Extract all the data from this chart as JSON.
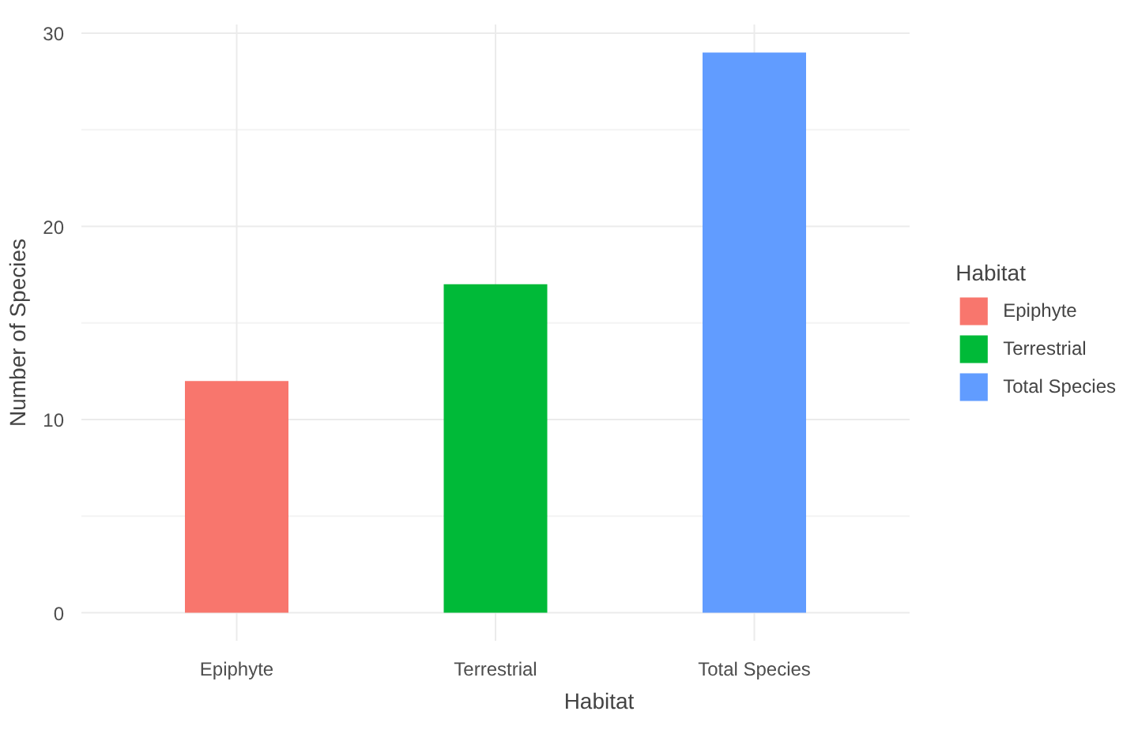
{
  "chart_data": {
    "type": "bar",
    "xlabel": "Habitat",
    "ylabel": "Number of Species",
    "legend_title": "Habitat",
    "categories": [
      "Epiphyte",
      "Terrestrial",
      "Total Species"
    ],
    "series": [
      {
        "name": "Epiphyte",
        "color": "#f8766d",
        "values": [
          12,
          null,
          null
        ]
      },
      {
        "name": "Terrestrial",
        "color": "#00ba38",
        "values": [
          null,
          17,
          null
        ]
      },
      {
        "name": "Total Species",
        "color": "#619cff",
        "values": [
          null,
          null,
          29
        ]
      }
    ],
    "ylim": [
      -1.45,
      30.45
    ],
    "yticks": [
      0,
      10,
      20,
      30
    ],
    "grid": true,
    "legend": "right"
  }
}
